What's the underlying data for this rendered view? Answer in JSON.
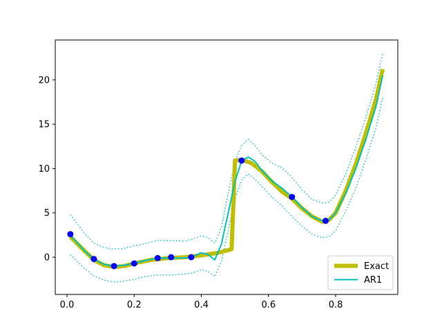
{
  "chart_data": {
    "type": "line",
    "title": "",
    "xlabel": "",
    "ylabel": "",
    "xlim": [
      -0.035,
      0.985
    ],
    "ylim": [
      -4.2,
      24.5
    ],
    "xticks": [
      0.0,
      0.2,
      0.4,
      0.6,
      0.8
    ],
    "xtick_labels": [
      "0.0",
      "0.2",
      "0.4",
      "0.6",
      "0.8"
    ],
    "yticks": [
      0,
      5,
      10,
      15,
      20
    ],
    "ytick_labels": [
      "0",
      "5",
      "10",
      "15",
      "20"
    ],
    "grid": false,
    "legend_position": "lower-right",
    "colors": {
      "exact": "#bfbf00",
      "ar1": "#00bfbf",
      "points": "#0000ff"
    },
    "series": [
      {
        "name": "Exact",
        "style": "thick-solid",
        "x": [
          0.01,
          0.05,
          0.08,
          0.11,
          0.14,
          0.17,
          0.2,
          0.25,
          0.3,
          0.35,
          0.4,
          0.45,
          0.49,
          0.495,
          0.5,
          0.52,
          0.55,
          0.58,
          0.61,
          0.64,
          0.67,
          0.7,
          0.73,
          0.76,
          0.78,
          0.8,
          0.83,
          0.86,
          0.89,
          0.92,
          0.94
        ],
        "y": [
          2.3,
          0.8,
          -0.3,
          -0.9,
          -1.1,
          -1.0,
          -0.7,
          -0.3,
          -0.1,
          0.0,
          0.2,
          0.5,
          0.9,
          5.5,
          10.9,
          11.0,
          10.6,
          9.7,
          8.5,
          7.4,
          6.6,
          5.5,
          4.6,
          4.0,
          4.2,
          5.0,
          7.5,
          10.5,
          14.0,
          17.8,
          21.2
        ]
      },
      {
        "name": "AR1",
        "style": "solid",
        "x": [
          0.01,
          0.05,
          0.08,
          0.11,
          0.14,
          0.17,
          0.2,
          0.23,
          0.27,
          0.31,
          0.35,
          0.37,
          0.4,
          0.42,
          0.44,
          0.46,
          0.48,
          0.5,
          0.52,
          0.54,
          0.56,
          0.58,
          0.61,
          0.64,
          0.67,
          0.7,
          0.73,
          0.76,
          0.78,
          0.8,
          0.83,
          0.86,
          0.89,
          0.92,
          0.94
        ],
        "y": [
          2.5,
          0.8,
          -0.2,
          -0.8,
          -1.0,
          -0.9,
          -0.7,
          -0.4,
          -0.1,
          -0.1,
          -0.1,
          0.0,
          0.5,
          0.3,
          -0.3,
          1.5,
          5.0,
          8.5,
          10.9,
          11.3,
          10.8,
          9.8,
          8.6,
          7.8,
          6.8,
          5.6,
          4.6,
          4.1,
          4.2,
          5.0,
          7.2,
          10.0,
          13.3,
          17.0,
          20.5
        ]
      },
      {
        "name": "",
        "style": "dotted-upper",
        "x": [
          0.01,
          0.05,
          0.08,
          0.11,
          0.14,
          0.17,
          0.2,
          0.23,
          0.27,
          0.31,
          0.35,
          0.37,
          0.4,
          0.42,
          0.44,
          0.46,
          0.48,
          0.5,
          0.52,
          0.54,
          0.56,
          0.58,
          0.61,
          0.64,
          0.67,
          0.7,
          0.73,
          0.76,
          0.78,
          0.8,
          0.83,
          0.86,
          0.89,
          0.92,
          0.94
        ],
        "y": [
          4.8,
          2.8,
          1.6,
          1.1,
          0.9,
          1.0,
          1.3,
          1.5,
          1.9,
          1.9,
          1.8,
          2.0,
          2.4,
          2.2,
          1.6,
          3.4,
          7.2,
          10.8,
          12.6,
          13.3,
          12.6,
          11.6,
          10.6,
          10.1,
          9.0,
          7.6,
          6.5,
          6.1,
          6.2,
          7.0,
          9.4,
          12.4,
          15.8,
          19.6,
          23.0
        ]
      },
      {
        "name": "",
        "style": "dotted-lower",
        "x": [
          0.01,
          0.05,
          0.08,
          0.11,
          0.14,
          0.17,
          0.2,
          0.23,
          0.27,
          0.31,
          0.35,
          0.37,
          0.4,
          0.42,
          0.44,
          0.46,
          0.48,
          0.5,
          0.52,
          0.54,
          0.56,
          0.58,
          0.61,
          0.64,
          0.67,
          0.7,
          0.73,
          0.76,
          0.78,
          0.8,
          0.83,
          0.86,
          0.89,
          0.92,
          0.94
        ],
        "y": [
          0.3,
          -1.2,
          -2.1,
          -2.6,
          -2.8,
          -2.7,
          -2.5,
          -2.2,
          -2.0,
          -2.0,
          -1.9,
          -1.8,
          -1.4,
          -1.6,
          -2.2,
          -0.4,
          3.0,
          6.6,
          8.7,
          9.4,
          8.8,
          8.0,
          6.8,
          5.8,
          4.6,
          3.5,
          2.6,
          2.2,
          2.3,
          3.0,
          5.2,
          7.8,
          11.0,
          14.6,
          18.0
        ]
      }
    ],
    "points": {
      "x": [
        0.01,
        0.08,
        0.14,
        0.2,
        0.27,
        0.31,
        0.37,
        0.52,
        0.67,
        0.77
      ],
      "y": [
        2.6,
        -0.2,
        -1.0,
        -0.7,
        -0.1,
        0.0,
        0.0,
        10.9,
        6.8,
        4.1
      ]
    },
    "legend": [
      {
        "label": "Exact",
        "style": "thick-solid"
      },
      {
        "label": "AR1",
        "style": "solid"
      }
    ]
  }
}
